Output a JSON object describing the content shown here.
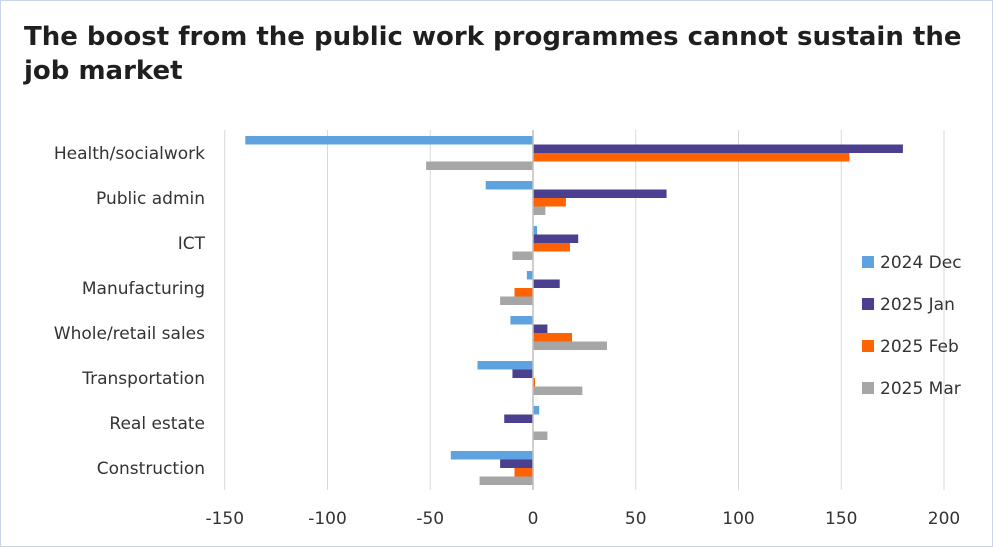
{
  "title": "The boost from the public work programmes cannot sustain the job market",
  "chart_data": {
    "type": "bar",
    "orientation": "horizontal",
    "categories": [
      "Health/socialwork",
      "Public admin",
      "ICT",
      "Manufacturing",
      "Whole/retail sales",
      "Transportation",
      "Real estate",
      "Construction"
    ],
    "series": [
      {
        "name": "2024 Dec",
        "color": "#5ea3e0",
        "values": [
          -140,
          -23,
          2,
          -3,
          -11,
          -27,
          3,
          -40
        ]
      },
      {
        "name": "2025 Jan",
        "color": "#4b3f8f",
        "values": [
          180,
          65,
          22,
          13,
          7,
          -10,
          -14,
          -16
        ]
      },
      {
        "name": "2025 Feb",
        "color": "#ff6200",
        "values": [
          154,
          16,
          18,
          -9,
          19,
          1,
          0,
          -9
        ]
      },
      {
        "name": "2025 Mar",
        "color": "#a6a6a6",
        "values": [
          -52,
          6,
          -10,
          -16,
          36,
          24,
          7,
          -26
        ]
      }
    ],
    "xlim": [
      -150,
      200
    ],
    "xticks": [
      "-150",
      "-100",
      "-50",
      "0",
      "50",
      "100",
      "150",
      "200"
    ],
    "grid": "vertical",
    "legend_position": "right"
  }
}
